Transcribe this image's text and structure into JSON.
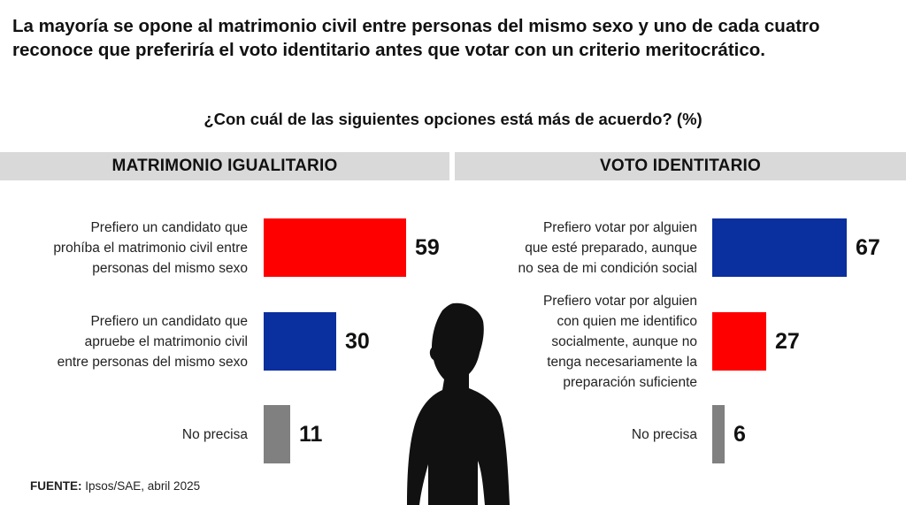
{
  "title": "La mayoría se opone al matrimonio civil entre personas del mismo sexo y uno de cada cuatro reconoce que preferiría el voto identitario antes que votar con un criterio meritocrático.",
  "subtitle": "¿Con cuál de las siguientes opciones está más de acuerdo? (%)",
  "source_label": "FUENTE:",
  "source_text": "Ipsos/SAE, abril 2025",
  "colors": {
    "red": "#ff0000",
    "blue": "#0a2f9e",
    "gray": "#808080",
    "header_bg": "#d9d9d9"
  },
  "silhouette_icon": "person-silhouette-icon",
  "chart_data": [
    {
      "type": "bar",
      "orientation": "horizontal",
      "title": "MATRIMONIO IGUALITARIO",
      "categories": [
        "Prefiero un candidato que prohíba el matrimonio civil entre personas del mismo sexo",
        "Prefiero un candidato que apruebe el matrimonio civil entre personas del mismo sexo",
        "No precisa"
      ],
      "label_lines": [
        [
          "Prefiero un candidato que",
          "prohíba el matrimonio civil entre",
          "personas del mismo sexo"
        ],
        [
          "Prefiero un candidato que",
          "apruebe el matrimonio civil",
          "entre personas del mismo sexo"
        ],
        [
          "No precisa"
        ]
      ],
      "values": [
        59,
        30,
        11
      ],
      "colors": [
        "#ff0000",
        "#0a2f9e",
        "#808080"
      ]
    },
    {
      "type": "bar",
      "orientation": "horizontal",
      "title": "VOTO IDENTITARIO",
      "categories": [
        "Prefiero votar por alguien que esté preparado, aunque no sea de mi condición social",
        "Prefiero votar por alguien con quien me identifico socialmente, aunque no tenga necesariamente la preparación suficiente",
        "No precisa"
      ],
      "label_lines": [
        [
          "Prefiero votar por alguien",
          "que esté preparado, aunque",
          "no sea de mi condición social"
        ],
        [
          "Prefiero votar por alguien",
          "con quien me identifico",
          "socialmente, aunque no",
          "tenga necesariamente la",
          "preparación suficiente"
        ],
        [
          "No precisa"
        ]
      ],
      "values": [
        67,
        27,
        6
      ],
      "colors": [
        "#0a2f9e",
        "#ff0000",
        "#808080"
      ]
    }
  ]
}
